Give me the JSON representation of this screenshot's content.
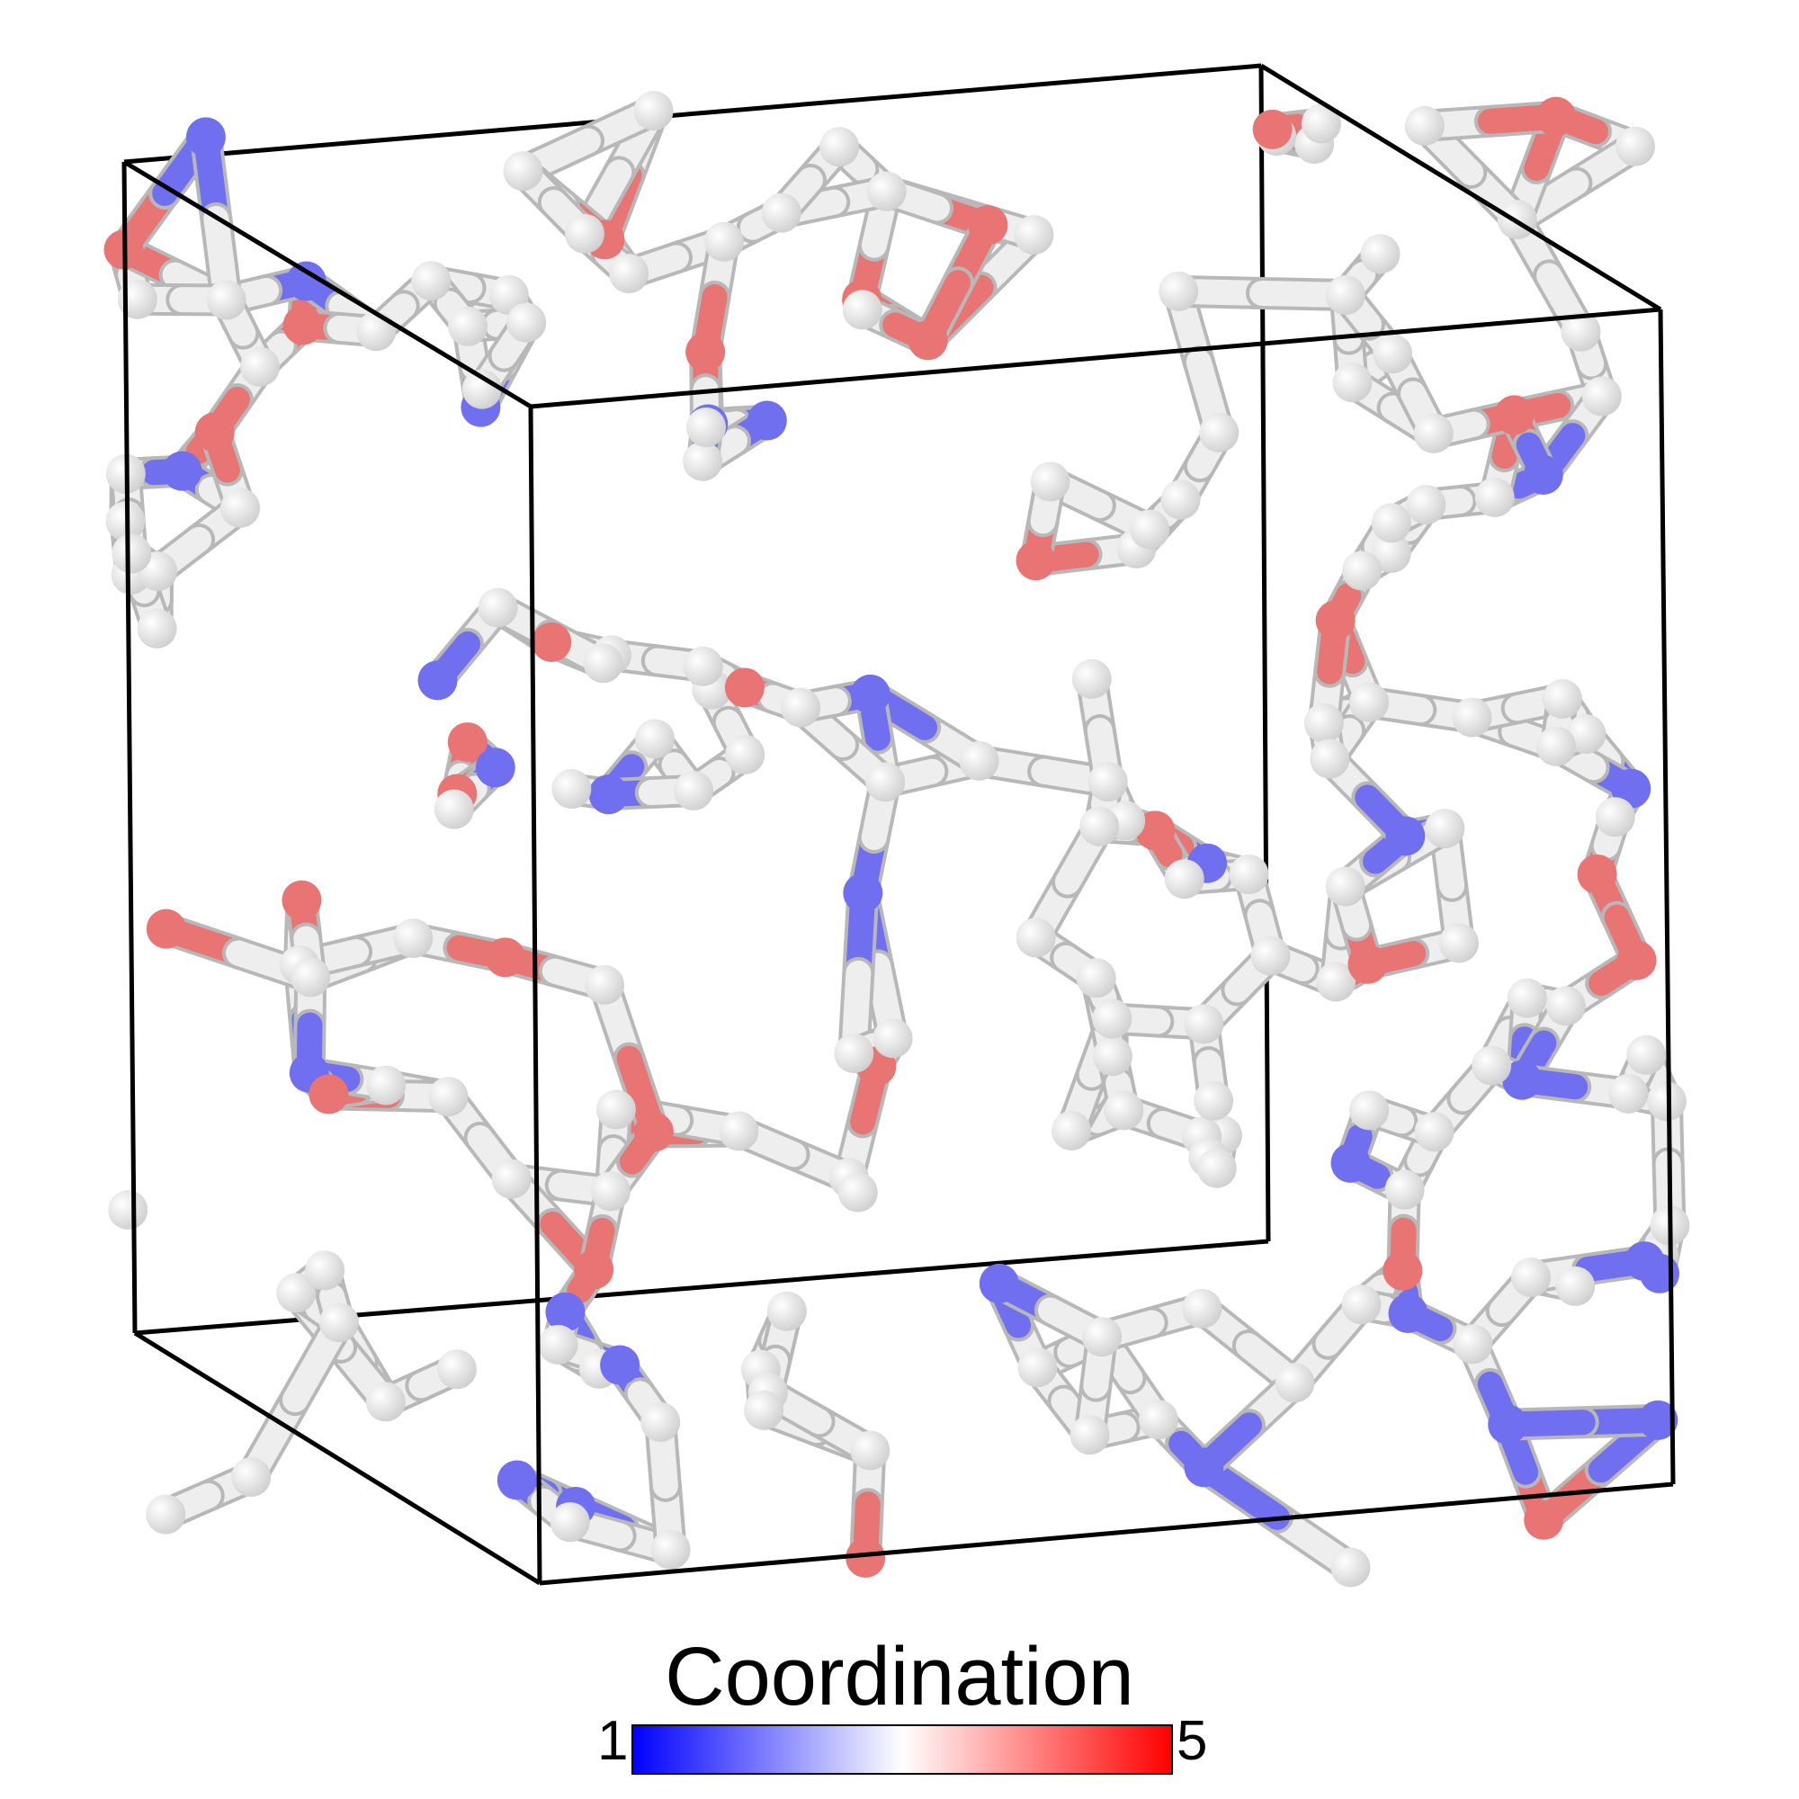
{
  "legend": {
    "title": "Coordination",
    "min_label": "1",
    "max_label": "5",
    "min_value": 1,
    "max_value": 5
  },
  "colors": {
    "low": "#0000ff",
    "mid": "#ffffff",
    "high": "#ff0000",
    "bond_low": "#6f6ff0",
    "bond_mid": "#eeeeee",
    "bond_high": "#e87474",
    "frame": "#000000"
  }
}
